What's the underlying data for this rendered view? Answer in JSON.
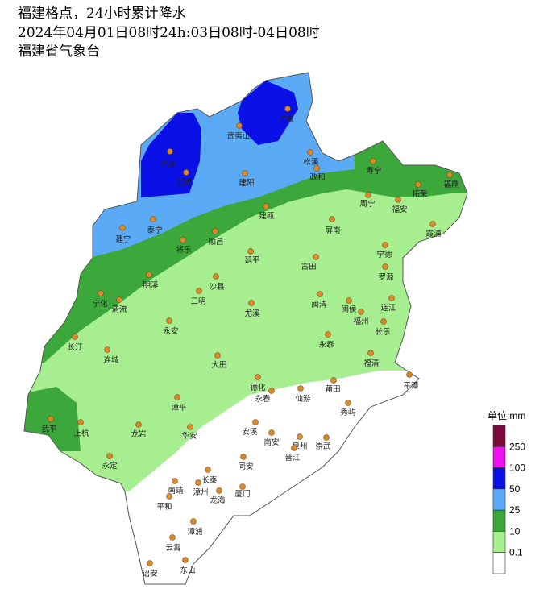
{
  "header": {
    "title": "福建格点，24小时累计降水",
    "period": "2024年04月01日08时24h:03日08时-04日08时",
    "source": "福建省气象台"
  },
  "stations": [
    "浦城",
    "武夷山",
    "光泽",
    "邵武",
    "松溪",
    "政和",
    "建阳",
    "寿宁",
    "柘荣",
    "福鼎",
    "周宁",
    "福安",
    "建宁",
    "泰宁",
    "建瓯",
    "屏南",
    "霞浦",
    "将乐",
    "顺昌",
    "延平",
    "古田",
    "宁德",
    "罗源",
    "明溪",
    "沙县",
    "宁化",
    "清流",
    "三明",
    "闽清",
    "闽侯",
    "连江",
    "尤溪",
    "福州",
    "长乐",
    "永安",
    "长汀",
    "永泰",
    "连城",
    "大田",
    "福清",
    "平潭",
    "德化",
    "永春",
    "莆田",
    "仙游",
    "秀屿",
    "漳平",
    "武平",
    "上杭",
    "龙岩",
    "华安",
    "安溪",
    "南安",
    "泉州",
    "崇武",
    "晋江",
    "永定",
    "长泰",
    "同安",
    "南靖",
    "漳州",
    "厦门",
    "龙海",
    "平和",
    "漳浦",
    "云霄",
    "诏安",
    "东山"
  ],
  "legend": {
    "title": "单位:mm",
    "levels": [
      250,
      100,
      50,
      25,
      10,
      0.1
    ],
    "colors": [
      "#7a0c3c",
      "#ee10ee",
      "#0a10e6",
      "#5aaaf6",
      "#3ca83c",
      "#a6ee90",
      "#ffffff"
    ]
  }
}
